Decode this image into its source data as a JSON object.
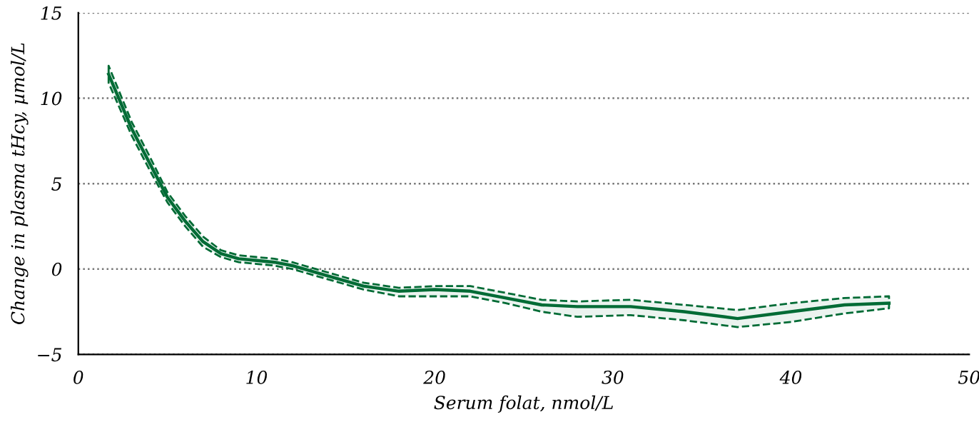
{
  "chart_data": {
    "type": "line",
    "xlabel": "Serum folat, nmol/L",
    "ylabel": "Change in plasma tHcy, µmol/L",
    "x": [
      1.7,
      3,
      4,
      5,
      6,
      7,
      8,
      9,
      10,
      11,
      12,
      13,
      14,
      16,
      18,
      20,
      22,
      24,
      26,
      28,
      31,
      34,
      37,
      40,
      43,
      45.5
    ],
    "series": [
      {
        "color": "#006b35",
        "line_style": "solid",
        "values": [
          11.4,
          8.2,
          6.2,
          4.2,
          2.8,
          1.6,
          0.9,
          0.6,
          0.5,
          0.4,
          0.2,
          -0.1,
          -0.4,
          -1.0,
          -1.3,
          -1.2,
          -1.3,
          -1.7,
          -2.1,
          -2.2,
          -2.2,
          -2.5,
          -2.9,
          -2.5,
          -2.1,
          -2.0
        ],
        "lower": [
          10.9,
          7.8,
          5.8,
          3.9,
          2.5,
          1.3,
          0.7,
          0.4,
          0.3,
          0.2,
          0.0,
          -0.3,
          -0.6,
          -1.2,
          -1.6,
          -1.6,
          -1.6,
          -2.0,
          -2.5,
          -2.8,
          -2.7,
          -3.0,
          -3.4,
          -3.1,
          -2.6,
          -2.3
        ],
        "upper": [
          11.9,
          8.6,
          6.6,
          4.5,
          3.1,
          1.9,
          1.1,
          0.8,
          0.7,
          0.6,
          0.4,
          0.1,
          -0.2,
          -0.8,
          -1.1,
          -1.0,
          -1.0,
          -1.4,
          -1.8,
          -1.9,
          -1.8,
          -2.1,
          -2.4,
          -2.0,
          -1.7,
          -1.6
        ]
      }
    ],
    "xlim": [
      0,
      50
    ],
    "xticks": [
      0,
      10,
      20,
      30,
      40,
      50
    ],
    "ylim": [
      -5,
      15
    ],
    "yticks": [
      {
        "value": -5,
        "label": "−5"
      },
      0,
      5,
      10,
      15
    ],
    "grid": "y",
    "legend": false
  }
}
